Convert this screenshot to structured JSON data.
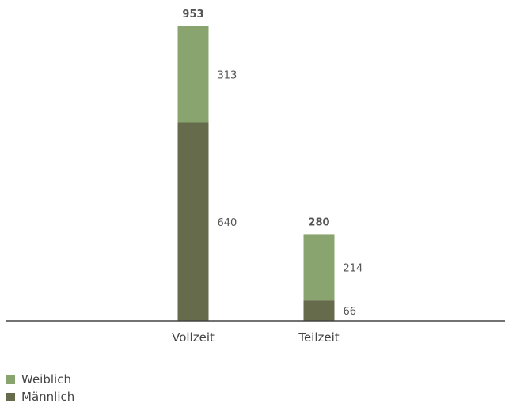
{
  "chart_data": {
    "type": "bar",
    "stacked": true,
    "categories": [
      "Vollzeit",
      "Teilzeit"
    ],
    "series": [
      {
        "name": "Männlich",
        "values": [
          640,
          66
        ],
        "color": "#666b4c"
      },
      {
        "name": "Weiblich",
        "values": [
          313,
          214
        ],
        "color": "#8aa46f"
      }
    ],
    "totals": [
      "953",
      "280"
    ],
    "title": "",
    "xlabel": "",
    "ylabel": "",
    "ylim": [
      0,
      953
    ],
    "grid": false,
    "legend_position": "bottom-left"
  },
  "legend": {
    "items": [
      {
        "label": "Weiblich",
        "color": "#8aa46f"
      },
      {
        "label": "Männlich",
        "color": "#666b4c"
      }
    ]
  }
}
